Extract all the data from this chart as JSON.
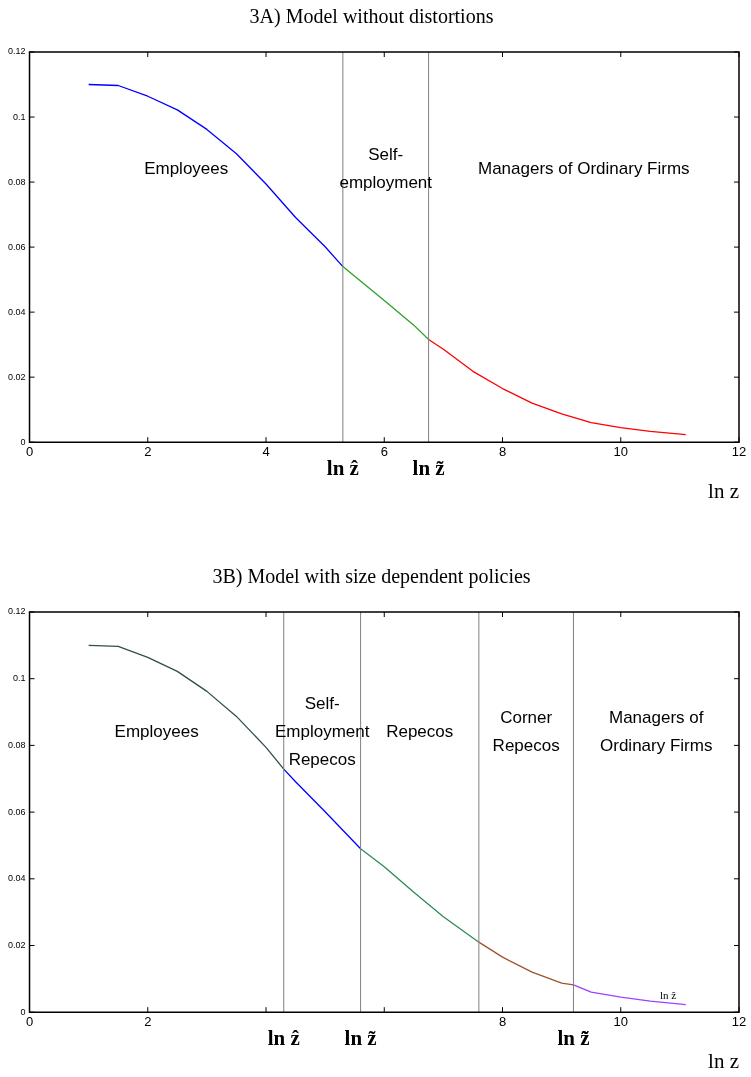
{
  "chart_data": [
    {
      "type": "line",
      "title": "3A) Model without distortions",
      "xlabel": "ln z",
      "marker": "none",
      "grid": false,
      "xlim": [
        0,
        12
      ],
      "xticks": [
        0,
        2,
        4,
        6,
        8,
        10,
        12
      ],
      "ylim": [
        0,
        0.12
      ],
      "yticks": [
        0,
        0.02,
        0.04,
        0.06,
        0.08,
        0.1,
        0.12
      ],
      "series": [
        {
          "color": "#0000ff",
          "x": [
            1,
            1.5,
            2,
            2.5,
            3,
            3.5,
            4,
            4.5,
            5,
            5.3
          ],
          "values": [
            0.11,
            0.1097,
            0.1064,
            0.1022,
            0.0962,
            0.0887,
            0.0794,
            0.0691,
            0.0601,
            0.054
          ]
        },
        {
          "color": "#2ca02c",
          "x": [
            5.3,
            5.5,
            6,
            6.5,
            6.75
          ],
          "values": [
            0.054,
            0.051,
            0.0436,
            0.036,
            0.0316
          ]
        },
        {
          "color": "#ff0000",
          "x": [
            6.75,
            7,
            7.5,
            8,
            8.5,
            9,
            9.5,
            10,
            10.5,
            11.1
          ],
          "values": [
            0.0316,
            0.0286,
            0.0218,
            0.0165,
            0.012,
            0.0087,
            0.006,
            0.0045,
            0.0033,
            0.0023
          ]
        }
      ],
      "ref_lines": [
        {
          "axis": "x",
          "value": 5.3,
          "label": "ln ẑ",
          "color": "#808080"
        },
        {
          "axis": "x",
          "value": 6.75,
          "label": "ln z̃",
          "color": "#808080"
        }
      ],
      "annotations": [
        "Employees",
        "Self-\nemployment",
        "Managers of Ordinary Firms"
      ]
    },
    {
      "type": "line",
      "title": "3B) Model with size dependent policies",
      "xlabel": "ln z",
      "marker": "none",
      "grid": false,
      "xlim": [
        0,
        12
      ],
      "xticks": [
        0,
        2,
        {
          "value": 4,
          "label": null
        },
        {
          "value": 6,
          "label": null
        },
        8,
        10,
        12
      ],
      "ylim": [
        0,
        0.12
      ],
      "yticks": [
        0,
        0.02,
        0.04,
        0.06,
        0.08,
        0.1,
        0.12
      ],
      "series": [
        {
          "color": "#2f4f4f",
          "x": [
            1,
            1.5,
            2,
            2.5,
            3,
            3.5,
            4,
            4.3
          ],
          "values": [
            0.11,
            0.1097,
            0.1064,
            0.1022,
            0.0962,
            0.0887,
            0.0794,
            0.0729
          ]
        },
        {
          "color": "#0000ff",
          "x": [
            4.3,
            4.5,
            5,
            5.6
          ],
          "values": [
            0.0729,
            0.0691,
            0.0601,
            0.049
          ]
        },
        {
          "color": "#2e8b57",
          "x": [
            5.6,
            6,
            6.5,
            7,
            7.6
          ],
          "values": [
            0.049,
            0.0436,
            0.036,
            0.0286,
            0.021
          ]
        },
        {
          "color": "#a0522d",
          "x": [
            7.6,
            8,
            8.5,
            9,
            9.2
          ],
          "values": [
            0.021,
            0.0165,
            0.012,
            0.0087,
            0.0082
          ]
        },
        {
          "color": "#a040ff",
          "x": [
            9.2,
            9.5,
            10,
            10.5,
            11.1
          ],
          "values": [
            0.0082,
            0.006,
            0.0045,
            0.0033,
            0.0023
          ]
        }
      ],
      "ref_lines": [
        {
          "axis": "x",
          "value": 4.3,
          "label": "ln ẑ",
          "color": "#808080"
        },
        {
          "axis": "x",
          "value": 5.6,
          "label": "ln z̃",
          "color": "#808080"
        },
        {
          "axis": "x",
          "value": 7.6,
          "color": "#808080"
        },
        {
          "axis": "x",
          "value": 9.2,
          "label": "ln z̃̃",
          "color": "#808080"
        }
      ],
      "annotations": [
        "Employees",
        "Self-\nEmployment\nRepecos",
        "Repecos",
        "Corner\nRepecos",
        "Managers of\nOrdinary Firms",
        {
          "text": "ln ẑ",
          "x": 10.8,
          "y": 0.003
        }
      ]
    }
  ]
}
